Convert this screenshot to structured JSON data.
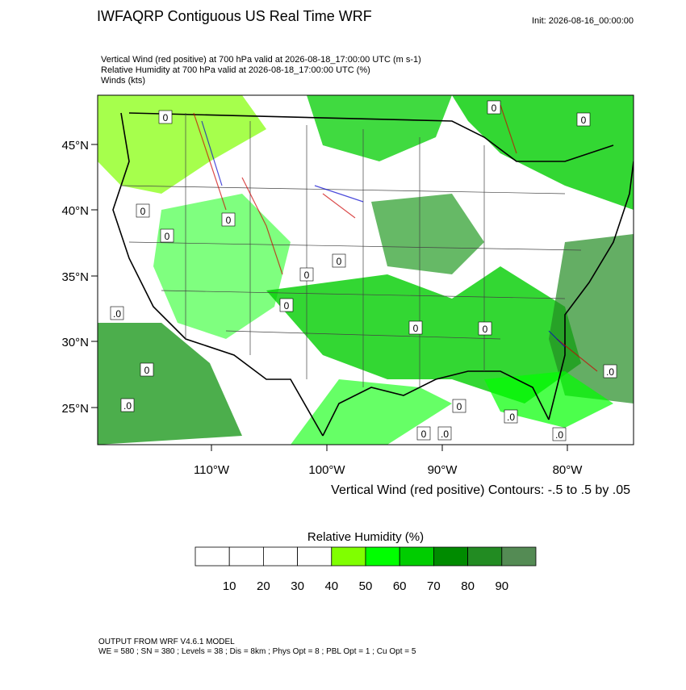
{
  "header": {
    "title": "IWFAQRP Contiguous US Real Time WRF",
    "init": "Init: 2026-08-16_00:00:00",
    "lines": [
      "Vertical Wind (red positive) at 700 hPa valid at 2026-08-18_17:00:00 UTC   (m s-1)",
      "Relative Humidity at 700 hPa valid at 2026-08-18_17:00:00 UTC   (%)",
      "Winds   (kts)"
    ]
  },
  "map": {
    "lat_labels": [
      "45°N",
      "40°N",
      "35°N",
      "30°N",
      "25°N"
    ],
    "lon_labels": [
      "110°W",
      "100°W",
      "90°W",
      "80°W"
    ],
    "contour_labels": [
      "0",
      "0",
      "0",
      "0",
      "0",
      "0",
      "0",
      "0",
      "0",
      ".0",
      "0",
      ".0",
      "0",
      ".0",
      "0",
      ".0",
      ".0",
      ".0",
      "0",
      "0"
    ],
    "caption": "Vertical Wind (red positive) Contours: -.5 to .5 by .05"
  },
  "colorbar": {
    "title": "Relative Humidity  (%)",
    "ticks": [
      10,
      20,
      30,
      40,
      50,
      60,
      70,
      80,
      90
    ],
    "colors": [
      "#ffffff",
      "#ffffff",
      "#ffffff",
      "#ffffff",
      "#80ff00",
      "#00ff00",
      "#00cd00",
      "#008b00",
      "#228b22",
      "#548b54"
    ]
  },
  "footer": {
    "lines": [
      "OUTPUT FROM WRF V4.6.1 MODEL",
      "WE = 580 ; SN = 380 ; Levels = 38 ; Dis = 8km ; Phys Opt = 8 ; PBL Opt = 1 ; Cu Opt = 5"
    ]
  }
}
